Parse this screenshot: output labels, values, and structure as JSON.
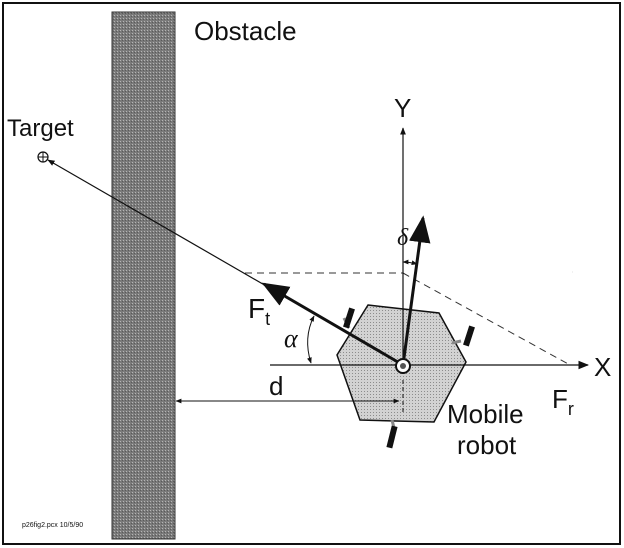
{
  "labels": {
    "obstacle": "Obstacle",
    "target": "Target",
    "y_axis": "Y",
    "x_axis": "X",
    "delta": "δ",
    "force_target_main": "F",
    "force_target_sub": "t",
    "alpha": "α",
    "distance": "d",
    "force_repulsive_main": "F",
    "force_repulsive_sub": "r",
    "robot_line1": "Mobile",
    "robot_line2": "robot",
    "footnote": "p26fig2.pcx 10/5/90"
  },
  "colors": {
    "ink": "#111111",
    "obstacle_fill": "#8a8a8a",
    "robot_fill": "#c8c8c8",
    "background": "#ffffff"
  }
}
